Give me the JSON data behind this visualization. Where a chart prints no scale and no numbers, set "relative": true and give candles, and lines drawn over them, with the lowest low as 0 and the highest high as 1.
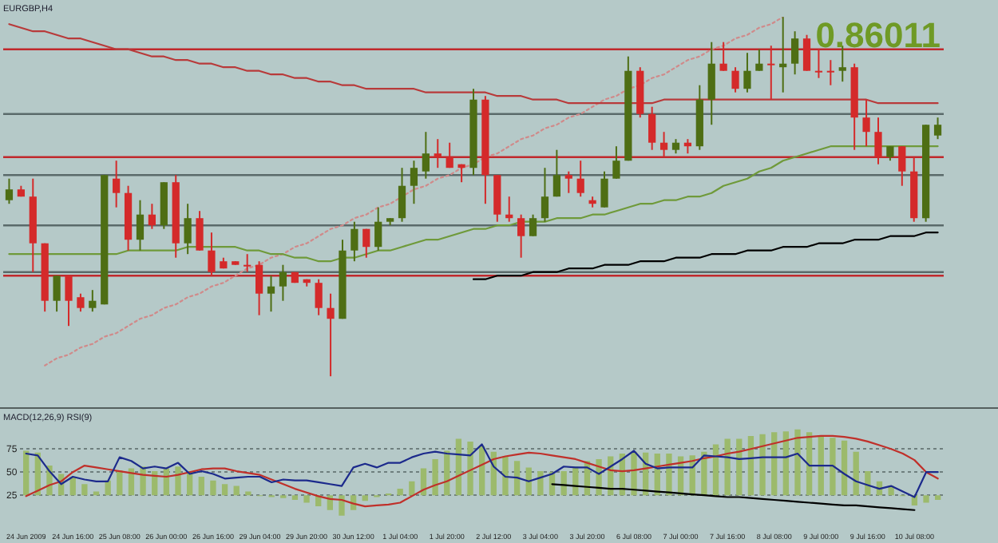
{
  "chart_data": [
    {
      "type": "candlestick",
      "title": "EURGBP,H4",
      "relative": true,
      "categories": [
        null,
        null,
        null,
        null,
        null,
        null,
        null,
        null,
        null,
        null,
        null,
        null,
        null,
        null,
        null,
        null,
        null,
        null,
        null,
        null,
        null,
        null,
        null,
        null,
        null,
        null,
        null,
        null,
        null,
        null,
        null,
        null,
        null,
        null,
        null,
        null,
        null,
        null,
        null,
        null,
        null,
        null,
        null,
        null,
        null,
        null,
        null,
        null,
        null,
        null,
        null,
        null,
        null,
        null,
        null,
        null,
        null,
        null,
        null,
        null,
        null,
        null,
        null,
        null,
        null,
        null,
        null,
        null,
        null,
        null,
        null,
        null,
        null,
        null,
        null,
        null,
        null,
        null,
        null
      ],
      "ohlc": [
        [
          0.49,
          0.55,
          0.48,
          0.52
        ],
        [
          0.52,
          0.53,
          0.5,
          0.5
        ],
        [
          0.5,
          0.55,
          0.29,
          0.37
        ],
        [
          0.37,
          0.37,
          0.18,
          0.21
        ],
        [
          0.21,
          0.28,
          0.18,
          0.28
        ],
        [
          0.28,
          0.28,
          0.14,
          0.21
        ],
        [
          0.22,
          0.23,
          0.18,
          0.19
        ],
        [
          0.19,
          0.24,
          0.18,
          0.21
        ],
        [
          0.2,
          0.56,
          0.2,
          0.56
        ],
        [
          0.55,
          0.6,
          0.47,
          0.51
        ],
        [
          0.51,
          0.53,
          0.35,
          0.38
        ],
        [
          0.38,
          0.49,
          0.35,
          0.45
        ],
        [
          0.45,
          0.48,
          0.41,
          0.42
        ],
        [
          0.42,
          0.54,
          0.41,
          0.54
        ],
        [
          0.54,
          0.56,
          0.33,
          0.37
        ],
        [
          0.37,
          0.48,
          0.34,
          0.44
        ],
        [
          0.44,
          0.46,
          0.35,
          0.35
        ],
        [
          0.35,
          0.4,
          0.28,
          0.29
        ],
        [
          0.32,
          0.33,
          0.3,
          0.3
        ],
        [
          0.32,
          0.32,
          0.31,
          0.31
        ],
        [
          0.31,
          0.34,
          0.29,
          0.31
        ],
        [
          0.31,
          0.32,
          0.17,
          0.23
        ],
        [
          0.23,
          0.28,
          0.18,
          0.25
        ],
        [
          0.25,
          0.31,
          0.21,
          0.29
        ],
        [
          0.29,
          0.29,
          0.26,
          0.26
        ],
        [
          0.27,
          0.27,
          0.25,
          0.26
        ],
        [
          0.26,
          0.27,
          0.17,
          0.19
        ],
        [
          0.19,
          0.23,
          0,
          0.16
        ],
        [
          0.16,
          0.38,
          0.16,
          0.35
        ],
        [
          0.35,
          0.43,
          0.32,
          0.41
        ],
        [
          0.41,
          0.41,
          0.33,
          0.36
        ],
        [
          0.36,
          0.47,
          0.35,
          0.43
        ],
        [
          0.43,
          0.44,
          0.42,
          0.44
        ],
        [
          0.44,
          0.58,
          0.43,
          0.53
        ],
        [
          0.53,
          0.6,
          0.48,
          0.58
        ],
        [
          0.57,
          0.68,
          0.55,
          0.62
        ],
        [
          0.62,
          0.66,
          0.58,
          0.61
        ],
        [
          0.61,
          0.65,
          0.58,
          0.58
        ],
        [
          0.59,
          0.59,
          0.54,
          0.58
        ],
        [
          0.58,
          0.8,
          0.56,
          0.77
        ],
        [
          0.77,
          0.78,
          0.48,
          0.56
        ],
        [
          0.56,
          0.56,
          0.43,
          0.45
        ],
        [
          0.45,
          0.5,
          0.43,
          0.44
        ],
        [
          0.44,
          0.45,
          0.33,
          0.39
        ],
        [
          0.39,
          0.45,
          0.39,
          0.44
        ],
        [
          0.44,
          0.58,
          0.43,
          0.5
        ],
        [
          0.5,
          0.63,
          0.5,
          0.56
        ],
        [
          0.56,
          0.57,
          0.51,
          0.55
        ],
        [
          0.55,
          0.6,
          0.5,
          0.51
        ],
        [
          0.49,
          0.5,
          0.47,
          0.48
        ],
        [
          0.47,
          0.57,
          0.47,
          0.55
        ],
        [
          0.55,
          0.64,
          0.55,
          0.6
        ],
        [
          0.6,
          0.89,
          0.6,
          0.85
        ],
        [
          0.85,
          0.86,
          0.72,
          0.73
        ],
        [
          0.73,
          0.75,
          0.63,
          0.65
        ],
        [
          0.65,
          0.68,
          0.61,
          0.63
        ],
        [
          0.63,
          0.66,
          0.62,
          0.65
        ],
        [
          0.65,
          0.66,
          0.62,
          0.64
        ],
        [
          0.64,
          0.81,
          0.63,
          0.77
        ],
        [
          0.77,
          0.93,
          0.7,
          0.87
        ],
        [
          0.87,
          0.93,
          0.85,
          0.85
        ],
        [
          0.85,
          0.86,
          0.79,
          0.8
        ],
        [
          0.8,
          0.9,
          0.79,
          0.85
        ],
        [
          0.85,
          0.91,
          0.85,
          0.87
        ],
        [
          0.87,
          0.92,
          0.77,
          0.87
        ],
        [
          0.86,
          1,
          0.79,
          0.87
        ],
        [
          0.87,
          0.96,
          0.84,
          0.94
        ],
        [
          0.94,
          0.95,
          0.85,
          0.85
        ],
        [
          0.85,
          0.91,
          0.83,
          0.85
        ],
        [
          0.85,
          0.88,
          0.81,
          0.85
        ],
        [
          0.85,
          0.92,
          0.82,
          0.86
        ],
        [
          0.86,
          0.87,
          0.63,
          0.72
        ],
        [
          0.72,
          0.77,
          0.64,
          0.68
        ],
        [
          0.68,
          0.72,
          0.59,
          0.61
        ],
        [
          0.61,
          0.64,
          0.6,
          0.64
        ],
        [
          0.64,
          0.64,
          0.53,
          0.57
        ],
        [
          0.57,
          0.61,
          0.43,
          0.44
        ],
        [
          0.44,
          0.7,
          0.43,
          0.7
        ],
        [
          0.67,
          0.72,
          0.66,
          0.7
        ]
      ],
      "colors": [
        "#4e6e14",
        "#d42a2a",
        "#d42a2a",
        "#d42a2a",
        "#4e6e14",
        "#d42a2a",
        "#d42a2a",
        "#4e6e14",
        "#4e6e14",
        "#d42a2a",
        "#d42a2a",
        "#4e6e14",
        "#d42a2a",
        "#4e6e14",
        "#d42a2a",
        "#4e6e14",
        "#d42a2a",
        "#d42a2a",
        "#d42a2a",
        "#d42a2a",
        "#d42a2a",
        "#d42a2a",
        "#4e6e14",
        "#4e6e14",
        "#d42a2a",
        "#d42a2a",
        "#d42a2a",
        "#d42a2a",
        "#4e6e14",
        "#4e6e14",
        "#d42a2a",
        "#4e6e14",
        "#4e6e14",
        "#4e6e14",
        "#4e6e14",
        "#4e6e14",
        "#d42a2a",
        "#d42a2a",
        "#d42a2a",
        "#4e6e14",
        "#d42a2a",
        "#d42a2a",
        "#d42a2a",
        "#d42a2a",
        "#4e6e14",
        "#4e6e14",
        "#4e6e14",
        "#d42a2a",
        "#d42a2a",
        "#d42a2a",
        "#4e6e14",
        "#4e6e14",
        "#4e6e14",
        "#d42a2a",
        "#d42a2a",
        "#d42a2a",
        "#4e6e14",
        "#d42a2a",
        "#4e6e14",
        "#4e6e14",
        "#d42a2a",
        "#d42a2a",
        "#4e6e14",
        "#4e6e14",
        "#d42a2a",
        "#4e6e14",
        "#4e6e14",
        "#d42a2a",
        "#d42a2a",
        "#d42a2a",
        "#4e6e14",
        "#d42a2a",
        "#d42a2a",
        "#d42a2a",
        "#4e6e14",
        "#d42a2a",
        "#d42a2a",
        "#4e6e14",
        "#4e6e14"
      ],
      "series": [
        {
          "type": "line",
          "color": "#b83a3a",
          "values": [
            0.98,
            0.97,
            0.96,
            0.96,
            0.95,
            0.94,
            0.94,
            0.93,
            0.92,
            0.91,
            0.91,
            0.9,
            0.89,
            0.89,
            0.88,
            0.88,
            0.87,
            0.87,
            0.86,
            0.86,
            0.85,
            0.85,
            0.84,
            0.84,
            0.83,
            0.83,
            0.82,
            0.82,
            0.81,
            0.81,
            0.8,
            0.8,
            0.8,
            0.8,
            0.8,
            0.79,
            0.79,
            0.79,
            0.79,
            0.79,
            0.79,
            0.78,
            0.78,
            0.78,
            0.77,
            0.77,
            0.77,
            0.76,
            0.76,
            0.76,
            0.76,
            0.76,
            0.76,
            0.76,
            0.76,
            0.77,
            0.77,
            0.77,
            0.77,
            0.77,
            0.77,
            0.77,
            0.77,
            0.77,
            0.77,
            0.77,
            0.77,
            0.77,
            0.77,
            0.77,
            0.77,
            0.77,
            0.77,
            0.76,
            0.76,
            0.76,
            0.76,
            0.76,
            0.76
          ]
        },
        {
          "type": "line",
          "color": "#6f9a3a",
          "values": [
            0.34,
            0.34,
            0.34,
            0.34,
            0.34,
            0.34,
            0.34,
            0.34,
            0.34,
            0.34,
            0.35,
            0.35,
            0.35,
            0.35,
            0.35,
            0.36,
            0.36,
            0.36,
            0.36,
            0.36,
            0.35,
            0.35,
            0.34,
            0.34,
            0.33,
            0.33,
            0.32,
            0.32,
            0.33,
            0.33,
            0.34,
            0.35,
            0.35,
            0.36,
            0.37,
            0.38,
            0.38,
            0.39,
            0.4,
            0.41,
            0.41,
            0.42,
            0.42,
            0.43,
            0.43,
            0.43,
            0.44,
            0.44,
            0.44,
            0.45,
            0.45,
            0.46,
            0.47,
            0.48,
            0.48,
            0.49,
            0.49,
            0.5,
            0.5,
            0.51,
            0.53,
            0.54,
            0.55,
            0.57,
            0.58,
            0.6,
            0.61,
            0.62,
            0.63,
            0.64,
            0.64,
            0.64,
            0.64,
            0.64,
            0.64,
            0.64,
            0.64,
            0.64,
            0.64
          ]
        },
        {
          "type": "line",
          "color": "#d08a8a",
          "line_style": "dotted",
          "values": [
            null,
            null,
            null,
            0.03,
            0.05,
            0.06,
            0.08,
            0.09,
            0.11,
            0.12,
            0.14,
            0.16,
            0.17,
            0.19,
            0.2,
            0.22,
            0.23,
            0.25,
            0.26,
            0.28,
            0.3,
            0.31,
            0.33,
            0.34,
            0.36,
            0.37,
            0.39,
            0.41,
            0.42,
            0.44,
            0.45,
            0.47,
            0.48,
            0.5,
            0.52,
            0.53,
            0.55,
            0.56,
            0.58,
            0.59,
            0.61,
            0.62,
            0.64,
            0.66,
            0.67,
            0.69,
            0.7,
            0.72,
            0.73,
            0.75,
            0.77,
            0.78,
            0.8,
            0.81,
            0.83,
            0.84,
            0.86,
            0.88,
            0.89,
            0.91,
            0.92,
            0.94,
            0.95,
            0.97,
            0.98,
            1.0,
            null,
            null,
            null,
            null,
            null,
            null,
            null,
            null,
            null,
            null,
            null,
            null,
            null
          ]
        },
        {
          "type": "line",
          "color": "#000000",
          "values": [
            null,
            null,
            null,
            null,
            null,
            null,
            null,
            null,
            null,
            null,
            null,
            null,
            null,
            null,
            null,
            null,
            null,
            null,
            null,
            null,
            null,
            null,
            null,
            null,
            null,
            null,
            null,
            null,
            null,
            null,
            null,
            null,
            null,
            null,
            null,
            null,
            null,
            null,
            null,
            0.27,
            0.27,
            0.28,
            0.28,
            0.28,
            0.29,
            0.29,
            0.29,
            0.3,
            0.3,
            0.3,
            0.31,
            0.31,
            0.31,
            0.32,
            0.32,
            0.32,
            0.33,
            0.33,
            0.33,
            0.34,
            0.34,
            0.34,
            0.35,
            0.35,
            0.35,
            0.36,
            0.36,
            0.36,
            0.37,
            0.37,
            0.37,
            0.38,
            0.38,
            0.38,
            0.39,
            0.39,
            0.39,
            0.4,
            0.4
          ]
        }
      ],
      "ref_lines": [
        {
          "axis": "y",
          "value": 0.91,
          "color": "#c0282c"
        },
        {
          "axis": "y",
          "value": 0.61,
          "color": "#c0282c"
        },
        {
          "axis": "y",
          "value": 0.28,
          "color": "#c0282c"
        },
        {
          "axis": "y",
          "value": 0.73,
          "color": "#5a6a6a"
        },
        {
          "axis": "y",
          "value": 0.56,
          "color": "#5a6a6a"
        },
        {
          "axis": "y",
          "value": 0.42,
          "color": "#5a6a6a"
        },
        {
          "axis": "y",
          "value": 0.29,
          "color": "#5a6a6a"
        }
      ],
      "annotations": [
        "0.86011"
      ]
    },
    {
      "type": "bar",
      "title": "MACD(12,26,9) RSI(9)",
      "categories": [
        "24 Jun 2009",
        null,
        null,
        null,
        "24 Jun 16:00",
        null,
        null,
        null,
        "25 Jun 08:00",
        null,
        null,
        null,
        "26 Jun 00:00",
        null,
        null,
        null,
        "26 Jun 16:00",
        null,
        null,
        null,
        "29 Jun 04:00",
        null,
        null,
        null,
        "29 Jun 20:00",
        null,
        null,
        null,
        "30 Jun 12:00",
        null,
        null,
        null,
        "1 Jul 04:00",
        null,
        null,
        null,
        "1 Jul 20:00",
        null,
        null,
        null,
        "2 Jul 12:00",
        null,
        null,
        null,
        "3 Jul 04:00",
        null,
        null,
        null,
        "3 Jul 20:00",
        null,
        null,
        null,
        "6 Jul 08:00",
        null,
        null,
        null,
        "7 Jul 00:00",
        null,
        null,
        null,
        "7 Jul 16:00",
        null,
        null,
        null,
        "8 Jul 08:00",
        null,
        null,
        null,
        "9 Jul 00:00",
        null,
        null,
        null,
        "9 Jul 16:00",
        null,
        null,
        null,
        "10 Jul 08:00",
        null,
        null
      ],
      "ylim": [
        0,
        100
      ],
      "yticks": [
        25,
        50,
        75
      ],
      "grid": "y",
      "series": [
        {
          "type": "bar",
          "color": "#9cba6c",
          "values": [
            48,
            46,
            32,
            23,
            20,
            12,
            4,
            16,
            27,
            29,
            31,
            26,
            29,
            31,
            26,
            20,
            16,
            12,
            10,
            4,
            -1,
            -2,
            -3,
            -5,
            -8,
            -12,
            -16,
            -22,
            -16,
            -6,
            -2,
            2,
            7,
            15,
            29,
            39,
            48,
            61,
            58,
            53,
            47,
            42,
            37,
            30,
            26,
            25,
            26,
            31,
            37,
            39,
            42,
            45,
            47,
            46,
            45,
            45,
            42,
            43,
            47,
            55,
            61,
            61,
            64,
            66,
            68,
            69,
            71,
            68,
            64,
            62,
            59,
            47,
            26,
            15,
            10,
            -1,
            -11,
            -8,
            -5
          ],
          "base": [
            25,
            25,
            25,
            25,
            25,
            25,
            25,
            25,
            25,
            25,
            25,
            25,
            25,
            25,
            25,
            25,
            25,
            25,
            25,
            25,
            25,
            25,
            25,
            25,
            25,
            25,
            25,
            25,
            25,
            25,
            25,
            25,
            25,
            25,
            25,
            25,
            25,
            25,
            25,
            25,
            25,
            25,
            25,
            25,
            25,
            25,
            25,
            25,
            25,
            25,
            25,
            25,
            25,
            25,
            25,
            25,
            25,
            25,
            25,
            25,
            25,
            25,
            25,
            25,
            25,
            25,
            25,
            25,
            25,
            25,
            25,
            25,
            25,
            25,
            25,
            25,
            25,
            25,
            25
          ]
        },
        {
          "type": "line",
          "color": "#1c2a8c",
          "values": [
            70,
            68,
            51,
            37,
            45,
            42,
            40,
            40,
            66,
            62,
            54,
            56,
            54,
            60,
            48,
            51,
            48,
            43,
            44,
            45,
            45,
            39,
            42,
            41,
            41,
            39,
            37,
            35,
            55,
            59,
            55,
            60,
            60,
            66,
            70,
            72,
            70,
            69,
            68,
            80,
            56,
            45,
            44,
            40,
            44,
            48,
            56,
            55,
            55,
            48,
            56,
            64,
            73,
            59,
            54,
            55,
            55,
            55,
            68,
            67,
            66,
            64,
            65,
            66,
            66,
            66,
            70,
            57,
            57,
            57,
            48,
            40,
            36,
            32,
            35,
            29,
            23,
            50,
            50
          ]
        },
        {
          "type": "line",
          "color": "#c0302a",
          "values": [
            24,
            30,
            36,
            40,
            50,
            57,
            55,
            53,
            51,
            49,
            47,
            46,
            45,
            47,
            50,
            53,
            54,
            54,
            51,
            49,
            47,
            42,
            37,
            32,
            28,
            24,
            21,
            20,
            16,
            13,
            14,
            15,
            17,
            24,
            31,
            36,
            40,
            46,
            52,
            58,
            64,
            67,
            69,
            71,
            70,
            68,
            66,
            64,
            60,
            56,
            52,
            51,
            52,
            54,
            56,
            58,
            60,
            62,
            65,
            67,
            70,
            72,
            75,
            78,
            81,
            84,
            87,
            88,
            89,
            89,
            88,
            86,
            83,
            79,
            75,
            70,
            63,
            50,
            43
          ]
        },
        {
          "type": "line",
          "color": "#000000",
          "values": [
            null,
            null,
            null,
            null,
            null,
            null,
            null,
            null,
            null,
            null,
            null,
            null,
            null,
            null,
            null,
            null,
            null,
            null,
            null,
            null,
            null,
            null,
            null,
            null,
            null,
            null,
            null,
            null,
            null,
            null,
            null,
            null,
            null,
            null,
            null,
            null,
            null,
            null,
            null,
            null,
            null,
            null,
            null,
            null,
            null,
            37,
            36,
            35,
            34,
            33,
            32,
            32,
            31,
            30,
            29,
            28,
            27,
            26,
            25,
            24,
            23,
            23,
            22,
            21,
            20,
            19,
            18,
            17,
            16,
            15,
            14,
            14,
            13,
            12,
            11,
            10,
            9,
            null,
            null
          ]
        }
      ]
    }
  ]
}
